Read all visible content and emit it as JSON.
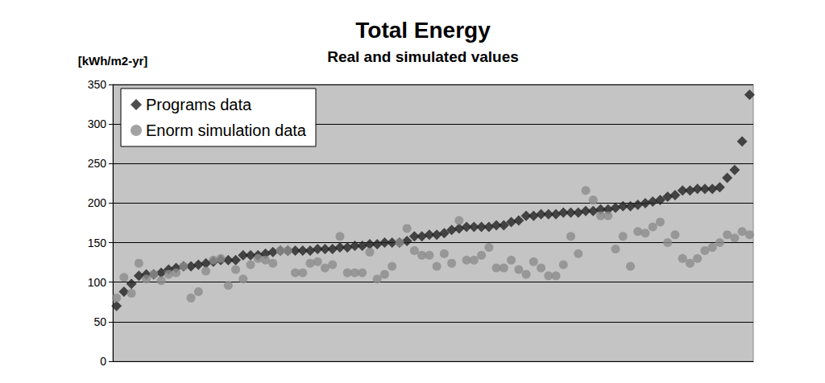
{
  "chart_data": {
    "type": "scatter",
    "title": "Total Energy",
    "subtitle": "Real and simulated values",
    "y_label": "[kWh/m2-yr]",
    "categories": [
      null,
      null,
      null,
      null,
      null,
      null,
      null,
      null,
      null,
      null,
      null,
      null,
      null,
      null,
      null,
      null,
      null,
      null,
      null,
      null,
      null,
      null,
      null,
      null,
      null,
      null,
      null,
      null,
      null,
      null,
      null,
      null,
      null,
      null,
      null,
      null,
      null,
      null,
      null,
      null,
      null,
      null,
      null,
      null,
      null,
      null,
      null,
      null,
      null,
      null,
      null,
      null,
      null,
      null,
      null,
      null,
      null,
      null,
      null,
      null,
      null,
      null,
      null,
      null,
      null,
      null,
      null,
      null,
      null,
      null,
      null,
      null,
      null,
      null,
      null,
      null,
      null,
      null,
      null,
      null,
      null,
      null,
      null,
      null,
      null,
      null
    ],
    "series": [
      {
        "name": "Programs data",
        "color": "#222222",
        "marker": "diamond",
        "values": [
          70,
          88,
          98,
          108,
          110,
          110,
          112,
          116,
          118,
          120,
          120,
          122,
          124,
          126,
          128,
          128,
          128,
          134,
          134,
          134,
          136,
          138,
          140,
          140,
          140,
          140,
          140,
          142,
          142,
          142,
          144,
          144,
          146,
          146,
          148,
          148,
          150,
          150,
          150,
          152,
          158,
          158,
          160,
          160,
          162,
          166,
          168,
          170,
          170,
          170,
          170,
          172,
          172,
          176,
          178,
          184,
          184,
          186,
          186,
          186,
          188,
          188,
          188,
          190,
          190,
          192,
          192,
          194,
          196,
          196,
          198,
          200,
          202,
          204,
          208,
          210,
          216,
          216,
          218,
          218,
          218,
          220,
          232,
          242,
          278,
          337
        ]
      },
      {
        "name": "Enorm simulation data",
        "color": "#8c8c8c",
        "marker": "circle",
        "values": [
          80,
          106,
          86,
          124,
          104,
          110,
          102,
          110,
          112,
          120,
          80,
          88,
          114,
          128,
          130,
          96,
          116,
          104,
          122,
          130,
          128,
          124,
          140,
          140,
          112,
          112,
          124,
          126,
          118,
          122,
          158,
          112,
          112,
          112,
          138,
          104,
          110,
          120,
          150,
          168,
          140,
          134,
          134,
          120,
          136,
          124,
          178,
          128,
          128,
          134,
          144,
          118,
          118,
          128,
          116,
          110,
          126,
          118,
          108,
          108,
          122,
          158,
          136,
          216,
          204,
          184,
          184,
          142,
          158,
          120,
          164,
          162,
          170,
          176,
          150,
          160,
          130,
          124,
          130,
          140,
          144,
          150,
          160,
          156,
          164,
          160
        ]
      }
    ],
    "ylim": [
      0,
      350
    ],
    "yticks": [
      0,
      50,
      100,
      150,
      200,
      250,
      300,
      350
    ],
    "grid": true,
    "legend": "upper left",
    "tick_labels": "y"
  }
}
